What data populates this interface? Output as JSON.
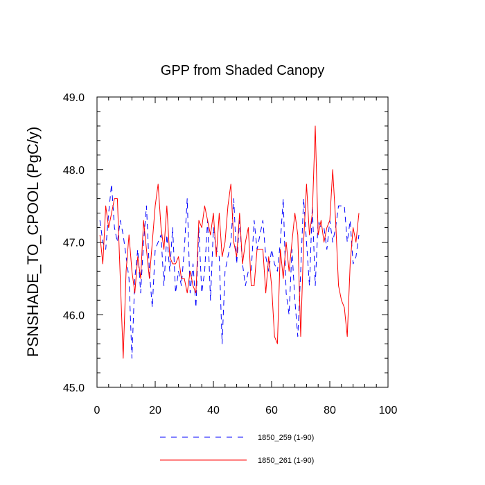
{
  "chart_data": {
    "type": "line",
    "title": "GPP from Shaded Canopy",
    "xlabel": "",
    "ylabel": "PSNSHADE_TO_CPOOL  (PgC/y)",
    "xlim": [
      0,
      100
    ],
    "ylim": [
      45.0,
      49.0
    ],
    "x_ticks": [
      0,
      20,
      40,
      60,
      80,
      100
    ],
    "x_tick_labels": [
      "0",
      "20",
      "40",
      "60",
      "80",
      "100"
    ],
    "y_ticks": [
      45.0,
      46.0,
      47.0,
      48.0,
      49.0
    ],
    "y_tick_labels": [
      "45.0",
      "46.0",
      "47.0",
      "48.0",
      "49.0"
    ],
    "grid": false,
    "legend_position": "bottom",
    "series": [
      {
        "name": "1850_259 (1-90)",
        "color": "#0000ff",
        "style": "dashed",
        "x": [
          1,
          2,
          3,
          4,
          5,
          6,
          7,
          8,
          9,
          10,
          11,
          12,
          13,
          14,
          15,
          16,
          17,
          18,
          19,
          20,
          21,
          22,
          23,
          24,
          25,
          26,
          27,
          28,
          29,
          30,
          31,
          32,
          33,
          34,
          35,
          36,
          37,
          38,
          39,
          40,
          41,
          42,
          43,
          44,
          45,
          46,
          47,
          48,
          49,
          50,
          51,
          52,
          53,
          54,
          55,
          56,
          57,
          58,
          59,
          60,
          61,
          62,
          63,
          64,
          65,
          66,
          67,
          68,
          69,
          70,
          71,
          72,
          73,
          74,
          75,
          76,
          77,
          78,
          79,
          80,
          81,
          82,
          83,
          84,
          85,
          86,
          87,
          88,
          89,
          90
        ],
        "values": [
          47.3,
          47.0,
          46.9,
          47.4,
          47.8,
          47.2,
          47.0,
          47.3,
          47.1,
          46.8,
          46.5,
          45.4,
          46.5,
          46.9,
          46.3,
          47.0,
          47.5,
          46.6,
          46.1,
          46.9,
          47.0,
          47.1,
          46.4,
          47.1,
          46.6,
          47.2,
          46.3,
          46.6,
          46.4,
          46.9,
          47.6,
          46.3,
          46.7,
          46.1,
          47.2,
          46.3,
          46.6,
          47.3,
          46.2,
          47.2,
          46.9,
          46.8,
          45.6,
          46.6,
          46.8,
          47.0,
          47.6,
          46.7,
          47.3,
          46.7,
          46.4,
          46.6,
          46.6,
          47.3,
          46.9,
          47.1,
          47.3,
          46.8,
          46.6,
          46.9,
          46.7,
          46.6,
          47.0,
          47.6,
          46.3,
          46.0,
          46.9,
          46.2,
          45.7,
          46.6,
          47.6,
          47.0,
          46.4,
          47.5,
          46.4,
          47.3,
          47.2,
          47.2,
          46.9,
          47.3,
          47.0,
          47.2,
          47.5,
          47.5,
          47.5,
          47.0,
          47.3,
          46.7,
          46.8,
          47.1
        ]
      },
      {
        "name": "1850_261 (1-90)",
        "color": "#ff0000",
        "style": "solid",
        "x": [
          1,
          2,
          3,
          4,
          5,
          6,
          7,
          8,
          9,
          10,
          11,
          12,
          13,
          14,
          15,
          16,
          17,
          18,
          19,
          20,
          21,
          22,
          23,
          24,
          25,
          26,
          27,
          28,
          29,
          30,
          31,
          32,
          33,
          34,
          35,
          36,
          37,
          38,
          39,
          40,
          41,
          42,
          43,
          44,
          45,
          46,
          47,
          48,
          49,
          50,
          51,
          52,
          53,
          54,
          55,
          56,
          57,
          58,
          59,
          60,
          61,
          62,
          63,
          64,
          65,
          66,
          67,
          68,
          69,
          70,
          71,
          72,
          73,
          74,
          75,
          76,
          77,
          78,
          79,
          80,
          81,
          82,
          83,
          84,
          85,
          86,
          87,
          88,
          89,
          90
        ],
        "values": [
          47.1,
          46.7,
          47.5,
          47.2,
          47.4,
          47.6,
          47.6,
          46.5,
          45.4,
          46.6,
          47.1,
          46.6,
          46.3,
          46.8,
          46.5,
          47.3,
          46.9,
          46.5,
          47.0,
          47.5,
          47.8,
          47.2,
          46.9,
          47.5,
          46.8,
          46.7,
          46.7,
          46.8,
          46.5,
          46.5,
          46.3,
          46.6,
          46.4,
          46.3,
          47.3,
          47.2,
          47.5,
          47.3,
          47.1,
          47.4,
          46.8,
          47.4,
          46.8,
          47.0,
          47.5,
          47.8,
          47.0,
          46.8,
          47.4,
          46.7,
          47.0,
          47.2,
          46.4,
          46.4,
          46.9,
          46.9,
          46.9,
          46.3,
          46.8,
          46.4,
          45.7,
          45.6,
          46.9,
          46.5,
          47.0,
          46.6,
          47.0,
          47.4,
          47.1,
          45.7,
          47.0,
          47.8,
          47.1,
          47.4,
          48.6,
          47.1,
          47.3,
          47.0,
          47.2,
          47.3,
          48.0,
          47.3,
          46.4,
          46.2,
          46.1,
          45.7,
          46.7,
          47.2,
          47.0,
          47.4
        ]
      }
    ]
  }
}
